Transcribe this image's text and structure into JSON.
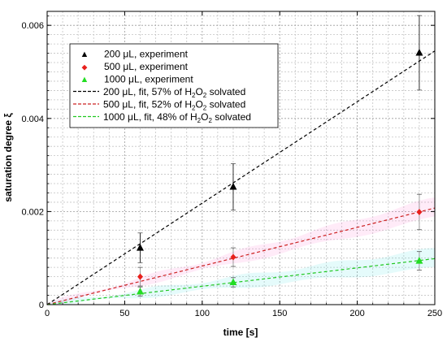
{
  "chart_data": {
    "type": "scatter",
    "xlabel": "time [s]",
    "ylabel": "saturation degree ξ",
    "xlim": [
      0,
      250
    ],
    "ylim": [
      0,
      0.0063
    ],
    "x_ticks": [
      0,
      50,
      100,
      150,
      200,
      250
    ],
    "x_tick_labels": [
      "0",
      "50",
      "100",
      "150",
      "200",
      "250"
    ],
    "y_ticks": [
      0,
      0.002,
      0.004,
      0.006
    ],
    "y_tick_labels": [
      "0",
      "0.002",
      "0.004",
      "0.006"
    ],
    "x_minor_step": 10,
    "y_minor_step": 0.0002,
    "grid": true,
    "legend_position": "top-left",
    "series": [
      {
        "name": "200 μL, experiment",
        "kind": "points",
        "marker": "triangle",
        "color": "#000000",
        "x": [
          60,
          120,
          240
        ],
        "y": [
          0.00122,
          0.00253,
          0.00541
        ],
        "err": [
          0.00032,
          0.0005,
          0.0008
        ]
      },
      {
        "name": "500 μL, experiment",
        "kind": "points",
        "marker": "diamond",
        "color": "#e8201c",
        "x": [
          60,
          120,
          240
        ],
        "y": [
          0.0006,
          0.00102,
          0.00199
        ],
        "err": [
          0.0002,
          0.0002,
          0.00038
        ]
      },
      {
        "name": "1000 μL, experiment",
        "kind": "points",
        "marker": "triangle",
        "color": "#22dd22",
        "x": [
          60,
          120,
          240
        ],
        "y": [
          0.00028,
          0.00048,
          0.00094
        ],
        "err": [
          0.0001,
          0.0001,
          0.0002
        ]
      },
      {
        "name": "200 μL, fit, 57% of H2O2 solvated",
        "kind": "fit",
        "color": "#000000",
        "slope": 2.18e-05,
        "band_color": ""
      },
      {
        "name": "500 μL, fit, 52% of H2O2 solvated",
        "kind": "fit",
        "color": "#cc2020",
        "slope": 8.3e-06,
        "band_color": "#ff66cc"
      },
      {
        "name": "1000 μL, fit, 48% of H2O2 solvated",
        "kind": "fit",
        "color": "#20c820",
        "slope": 3.95e-06,
        "band_color": "#33dddd"
      }
    ]
  },
  "legend": {
    "entries": [
      {
        "prefix": "200 μL, experiment",
        "chem": false,
        "symbol": "▲",
        "color": "#000000",
        "style": "marker"
      },
      {
        "prefix": "500 μL, experiment",
        "chem": false,
        "symbol": "◆",
        "color": "#e8201c",
        "style": "marker"
      },
      {
        "prefix": "1000 μL, experiment",
        "chem": false,
        "symbol": "▲",
        "color": "#22dd22",
        "style": "marker"
      },
      {
        "prefix": "200 μL, fit, 57% of ",
        "chem": true,
        "suffix": " solvated",
        "color": "#000000",
        "style": "dash"
      },
      {
        "prefix": "500 μL, fit, 52% of ",
        "chem": true,
        "suffix": " solvated",
        "color": "#cc2020",
        "style": "dash"
      },
      {
        "prefix": "1000 μL, fit, 48% of ",
        "chem": true,
        "suffix": " solvated",
        "color": "#20c820",
        "style": "dash"
      }
    ],
    "chem_parts": [
      "H",
      "2",
      "O",
      "2"
    ]
  }
}
